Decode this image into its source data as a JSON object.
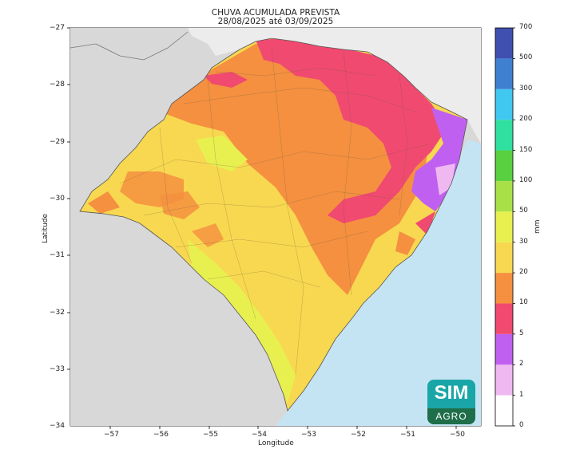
{
  "title_line1": "CHUVA ACUMULADA PREVISTA",
  "title_line2": "28/08/2025 até 03/09/2025",
  "xlabel": "Longitude",
  "ylabel": "Latitude",
  "x_ticks": [
    "−57",
    "−56",
    "−55",
    "−54",
    "−53",
    "−52",
    "−51",
    "−50"
  ],
  "y_ticks": [
    "−27",
    "−28",
    "−29",
    "−30",
    "−31",
    "−32",
    "−33",
    "−34"
  ],
  "colorbar": {
    "unit": "mm",
    "levels": [
      "0",
      "1",
      "2",
      "5",
      "10",
      "20",
      "30",
      "50",
      "100",
      "150",
      "200",
      "300",
      "500",
      "700"
    ],
    "colors": [
      "#ffffff",
      "#f0b8f0",
      "#c060f0",
      "#f04a70",
      "#f49040",
      "#f8d850",
      "#e8f050",
      "#a8e048",
      "#58d040",
      "#30e0a0",
      "#40c8f0",
      "#4080d0",
      "#4050b0"
    ]
  },
  "logo": {
    "top": "SIM",
    "bottom": "AGRO"
  },
  "colors": {
    "ocean": "#c4e4f4",
    "land": "#d8d8d8",
    "frame": "#000000"
  }
}
